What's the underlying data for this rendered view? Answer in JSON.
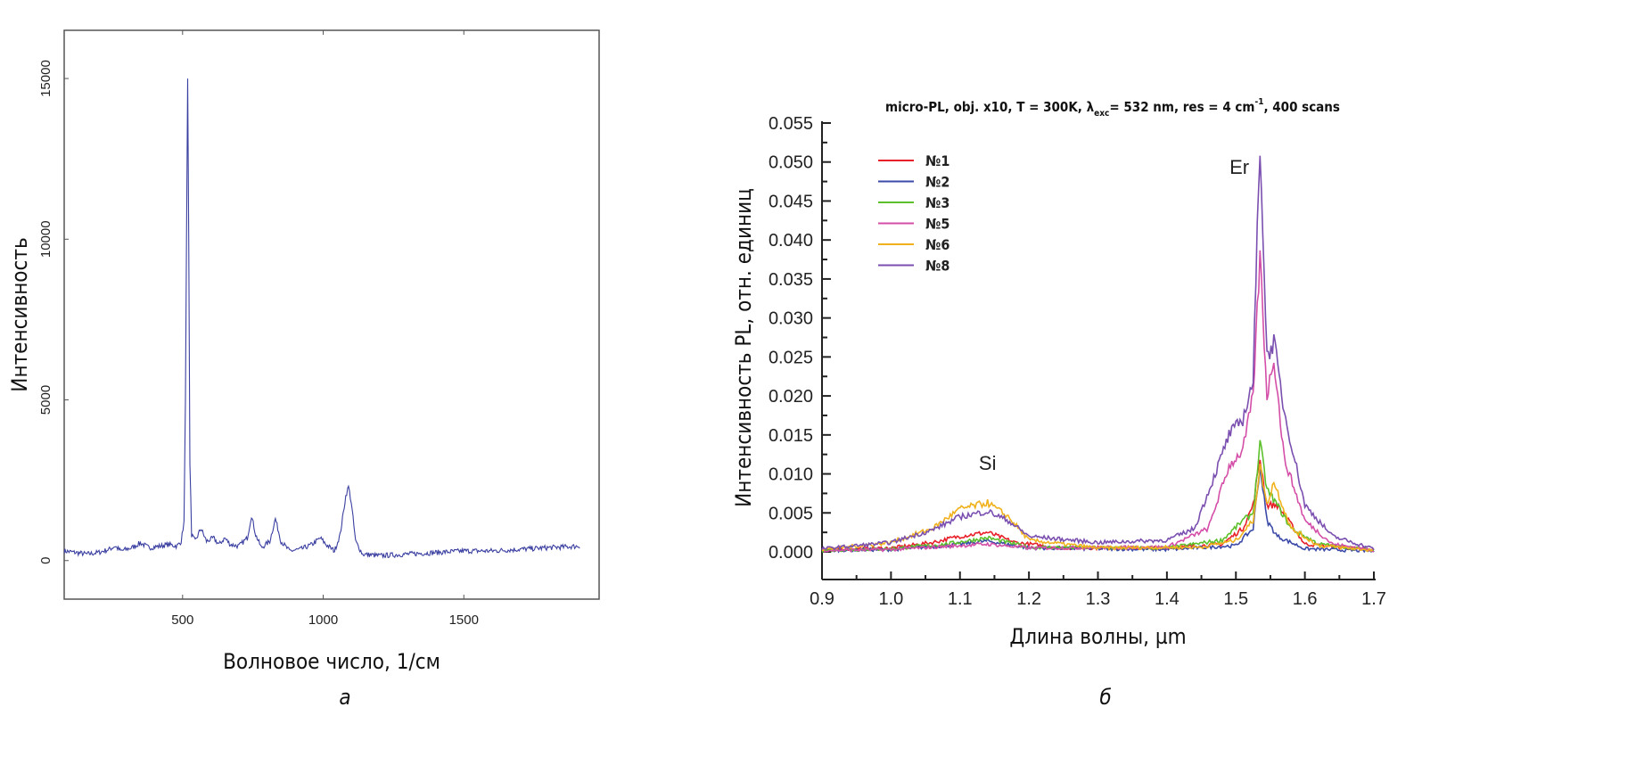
{
  "chart_data": [
    {
      "type": "line",
      "panel_label": "а",
      "xlabel": "Волновое число, 1/см",
      "ylabel": "Интенсивность",
      "xlim": [
        79,
        1981
      ],
      "ylim": [
        -1200,
        16500
      ],
      "xticks": [
        500,
        1000,
        1500
      ],
      "yticks": [
        0,
        5000,
        10000,
        15000
      ],
      "grid": false,
      "color": "#3a3fa0",
      "series": [
        {
          "points": [
            [
              79,
              300
            ],
            [
              120,
              250
            ],
            [
              160,
              200
            ],
            [
              200,
              250
            ],
            [
              240,
              350
            ],
            [
              260,
              450
            ],
            [
              280,
              300
            ],
            [
              320,
              400
            ],
            [
              350,
              550
            ],
            [
              380,
              400
            ],
            [
              420,
              450
            ],
            [
              450,
              500
            ],
            [
              480,
              450
            ],
            [
              495,
              600
            ],
            [
              505,
              1200
            ],
            [
              510,
              5000
            ],
            [
              514,
              10000
            ],
            [
              518,
              15000
            ],
            [
              522,
              10000
            ],
            [
              526,
              3000
            ],
            [
              532,
              800
            ],
            [
              545,
              600
            ],
            [
              565,
              1000
            ],
            [
              585,
              600
            ],
            [
              610,
              700
            ],
            [
              630,
              500
            ],
            [
              650,
              700
            ],
            [
              670,
              500
            ],
            [
              700,
              450
            ],
            [
              730,
              700
            ],
            [
              745,
              1400
            ],
            [
              760,
              800
            ],
            [
              780,
              400
            ],
            [
              810,
              600
            ],
            [
              830,
              1300
            ],
            [
              850,
              600
            ],
            [
              880,
              300
            ],
            [
              920,
              350
            ],
            [
              960,
              500
            ],
            [
              990,
              700
            ],
            [
              1010,
              500
            ],
            [
              1040,
              300
            ],
            [
              1060,
              800
            ],
            [
              1080,
              2000
            ],
            [
              1090,
              2300
            ],
            [
              1100,
              1800
            ],
            [
              1115,
              600
            ],
            [
              1140,
              200
            ],
            [
              1200,
              150
            ],
            [
              1300,
              200
            ],
            [
              1400,
              250
            ],
            [
              1500,
              300
            ],
            [
              1600,
              300
            ],
            [
              1700,
              350
            ],
            [
              1800,
              400
            ],
            [
              1912,
              450
            ]
          ]
        }
      ]
    },
    {
      "type": "line",
      "panel_label": "б",
      "title": "micro-PL, obj. x10, T = 300K, λexc= 532 nm, res = 4 cm-1, 400 scans",
      "title_parts": {
        "a": "micro-PL, obj. x10, T = 300K, λ",
        "sub": "exc",
        "b": "= 532 nm, res = 4 cm",
        "sup": "-1",
        "c": ", 400 scans"
      },
      "xlabel": "Длина волны, µm",
      "ylabel": "Интенсивность PL, отн. единиц",
      "xlim": [
        0.9,
        1.7
      ],
      "ylim": [
        -0.0035,
        0.055
      ],
      "xticks": [
        "0.9",
        "1.0",
        "1.1",
        "1.2",
        "1.3",
        "1.4",
        "1.5",
        "1.6",
        "1.7"
      ],
      "yticks": [
        "0.000",
        "0.005",
        "0.010",
        "0.015",
        "0.020",
        "0.025",
        "0.030",
        "0.035",
        "0.040",
        "0.045",
        "0.050",
        "0.055"
      ],
      "annotations": [
        {
          "text": "Si",
          "x": 1.14,
          "y": 0.0105
        },
        {
          "text": "Er",
          "x": 1.505,
          "y": 0.0485
        }
      ],
      "legend": "top-left",
      "grid": false,
      "series": [
        {
          "name": "№1",
          "color": "#e8202a",
          "points": [
            [
              0.9,
              0.0003
            ],
            [
              1.0,
              0.0005
            ],
            [
              1.06,
              0.0012
            ],
            [
              1.1,
              0.002
            ],
            [
              1.14,
              0.0025
            ],
            [
              1.18,
              0.0012
            ],
            [
              1.25,
              0.0005
            ],
            [
              1.4,
              0.0005
            ],
            [
              1.48,
              0.001
            ],
            [
              1.51,
              0.003
            ],
            [
              1.525,
              0.006
            ],
            [
              1.535,
              0.012
            ],
            [
              1.545,
              0.006
            ],
            [
              1.56,
              0.006
            ],
            [
              1.6,
              0.001
            ],
            [
              1.7,
              0.0002
            ]
          ]
        },
        {
          "name": "№2",
          "color": "#3b4aa8",
          "points": [
            [
              0.9,
              0.0002
            ],
            [
              1.0,
              0.0003
            ],
            [
              1.08,
              0.0008
            ],
            [
              1.14,
              0.0014
            ],
            [
              1.2,
              0.0005
            ],
            [
              1.4,
              0.0003
            ],
            [
              1.5,
              0.0008
            ],
            [
              1.525,
              0.003
            ],
            [
              1.535,
              0.011
            ],
            [
              1.545,
              0.004
            ],
            [
              1.56,
              0.002
            ],
            [
              1.6,
              0.0004
            ],
            [
              1.7,
              0.0001
            ]
          ]
        },
        {
          "name": "№3",
          "color": "#5cc02c",
          "points": [
            [
              0.9,
              0.0002
            ],
            [
              1.0,
              0.0004
            ],
            [
              1.08,
              0.001
            ],
            [
              1.14,
              0.0018
            ],
            [
              1.2,
              0.0006
            ],
            [
              1.4,
              0.0005
            ],
            [
              1.48,
              0.0015
            ],
            [
              1.51,
              0.004
            ],
            [
              1.525,
              0.005
            ],
            [
              1.535,
              0.014
            ],
            [
              1.545,
              0.008
            ],
            [
              1.56,
              0.006
            ],
            [
              1.58,
              0.003
            ],
            [
              1.62,
              0.001
            ],
            [
              1.7,
              0.0002
            ]
          ]
        },
        {
          "name": "№5",
          "color": "#d44ea8",
          "points": [
            [
              0.9,
              0.0002
            ],
            [
              1.0,
              0.0003
            ],
            [
              1.1,
              0.0008
            ],
            [
              1.14,
              0.001
            ],
            [
              1.2,
              0.0005
            ],
            [
              1.4,
              0.0006
            ],
            [
              1.46,
              0.003
            ],
            [
              1.49,
              0.011
            ],
            [
              1.51,
              0.013
            ],
            [
              1.525,
              0.02
            ],
            [
              1.535,
              0.038
            ],
            [
              1.545,
              0.02
            ],
            [
              1.555,
              0.025
            ],
            [
              1.57,
              0.012
            ],
            [
              1.6,
              0.004
            ],
            [
              1.64,
              0.001
            ],
            [
              1.7,
              0.0002
            ]
          ]
        },
        {
          "name": "№6",
          "color": "#f0b21c",
          "points": [
            [
              0.9,
              0.0003
            ],
            [
              1.0,
              0.0012
            ],
            [
              1.06,
              0.003
            ],
            [
              1.1,
              0.0055
            ],
            [
              1.14,
              0.0063
            ],
            [
              1.17,
              0.0045
            ],
            [
              1.2,
              0.0015
            ],
            [
              1.3,
              0.0005
            ],
            [
              1.45,
              0.0006
            ],
            [
              1.5,
              0.0015
            ],
            [
              1.525,
              0.004
            ],
            [
              1.535,
              0.011
            ],
            [
              1.545,
              0.006
            ],
            [
              1.555,
              0.009
            ],
            [
              1.58,
              0.003
            ],
            [
              1.62,
              0.0008
            ],
            [
              1.7,
              0.0002
            ]
          ]
        },
        {
          "name": "№8",
          "color": "#7a4fb0",
          "points": [
            [
              0.9,
              0.0004
            ],
            [
              1.0,
              0.0012
            ],
            [
              1.06,
              0.0028
            ],
            [
              1.1,
              0.0045
            ],
            [
              1.14,
              0.0052
            ],
            [
              1.17,
              0.004
            ],
            [
              1.2,
              0.002
            ],
            [
              1.3,
              0.0012
            ],
            [
              1.4,
              0.0015
            ],
            [
              1.44,
              0.003
            ],
            [
              1.47,
              0.01
            ],
            [
              1.49,
              0.015
            ],
            [
              1.51,
              0.017
            ],
            [
              1.525,
              0.022
            ],
            [
              1.535,
              0.053
            ],
            [
              1.545,
              0.025
            ],
            [
              1.555,
              0.027
            ],
            [
              1.57,
              0.018
            ],
            [
              1.6,
              0.006
            ],
            [
              1.64,
              0.002
            ],
            [
              1.7,
              0.0004
            ]
          ]
        }
      ]
    }
  ]
}
